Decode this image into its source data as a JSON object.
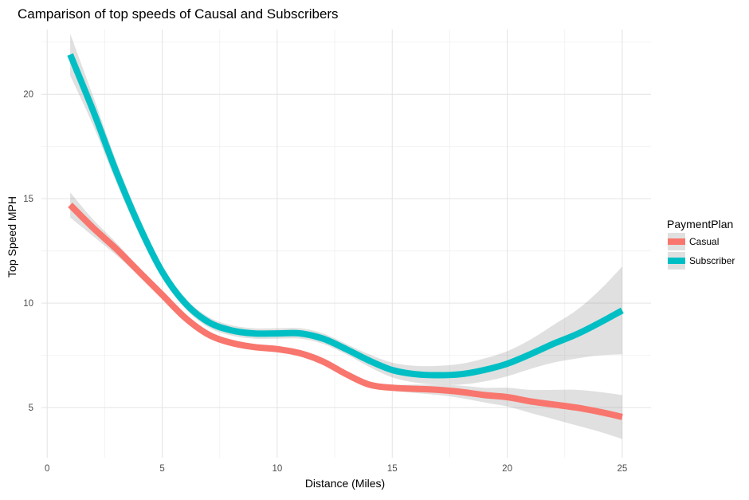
{
  "chart_data": {
    "type": "line",
    "title": "Camparison of top speeds of Causal and Subscribers",
    "xlabel": "Distance (Miles)",
    "ylabel": "Top Speed MPH",
    "xlim": [
      -0.25,
      26.25
    ],
    "ylim": [
      2.6,
      23.1
    ],
    "x_ticks": [
      0,
      5,
      10,
      15,
      20,
      25
    ],
    "x_tick_labels": [
      "0",
      "5",
      "10",
      "15",
      "20",
      "25"
    ],
    "y_ticks": [
      5,
      10,
      15,
      20
    ],
    "y_tick_labels": [
      "5",
      "10",
      "15",
      "20"
    ],
    "grid": true,
    "legend": {
      "title": "PaymentPlan",
      "position": "right"
    },
    "series": [
      {
        "name": "Casual",
        "color": "#f8766d",
        "x": [
          1,
          2,
          3,
          4,
          5,
          6,
          7,
          8,
          9,
          10,
          11,
          12,
          13,
          14,
          15,
          16,
          17,
          18,
          19,
          20,
          21,
          22,
          23,
          24,
          25
        ],
        "y": [
          14.7,
          13.6,
          12.6,
          11.5,
          10.4,
          9.3,
          8.5,
          8.1,
          7.9,
          7.8,
          7.6,
          7.2,
          6.6,
          6.1,
          5.95,
          5.9,
          5.85,
          5.75,
          5.6,
          5.5,
          5.3,
          5.15,
          5.0,
          4.8,
          4.55
        ],
        "ci_lower": [
          14.1,
          13.2,
          12.3,
          11.3,
          10.2,
          9.1,
          8.35,
          7.95,
          7.75,
          7.65,
          7.45,
          7.05,
          6.45,
          5.95,
          5.8,
          5.7,
          5.6,
          5.45,
          5.25,
          5.05,
          4.75,
          4.45,
          4.15,
          3.85,
          3.5
        ],
        "ci_upper": [
          15.3,
          14.0,
          12.9,
          11.7,
          10.6,
          9.5,
          8.65,
          8.25,
          8.05,
          7.95,
          7.75,
          7.35,
          6.75,
          6.25,
          6.1,
          6.1,
          6.1,
          6.05,
          5.95,
          5.95,
          5.85,
          5.85,
          5.85,
          5.75,
          5.6
        ]
      },
      {
        "name": "Subscriber",
        "color": "#00bfc4",
        "x": [
          1,
          2,
          3,
          4,
          5,
          6,
          7,
          8,
          9,
          10,
          11,
          12,
          13,
          14,
          15,
          16,
          17,
          18,
          19,
          20,
          21,
          22,
          23,
          24,
          25
        ],
        "y": [
          21.9,
          19.2,
          16.3,
          13.7,
          11.5,
          10.0,
          9.1,
          8.7,
          8.55,
          8.55,
          8.55,
          8.3,
          7.8,
          7.25,
          6.8,
          6.6,
          6.55,
          6.6,
          6.8,
          7.1,
          7.55,
          8.05,
          8.5,
          9.05,
          9.65
        ],
        "ci_lower": [
          20.9,
          18.5,
          15.8,
          13.3,
          11.2,
          9.75,
          8.85,
          8.45,
          8.3,
          8.3,
          8.3,
          8.05,
          7.55,
          6.95,
          6.45,
          6.2,
          6.1,
          6.1,
          6.25,
          6.5,
          6.85,
          7.15,
          7.35,
          7.5,
          7.55
        ],
        "ci_upper": [
          22.9,
          19.9,
          16.8,
          14.1,
          11.8,
          10.25,
          9.35,
          8.95,
          8.8,
          8.8,
          8.8,
          8.55,
          8.05,
          7.55,
          7.15,
          7.0,
          7.0,
          7.1,
          7.35,
          7.7,
          8.25,
          8.95,
          9.65,
          10.6,
          11.75
        ]
      }
    ]
  }
}
